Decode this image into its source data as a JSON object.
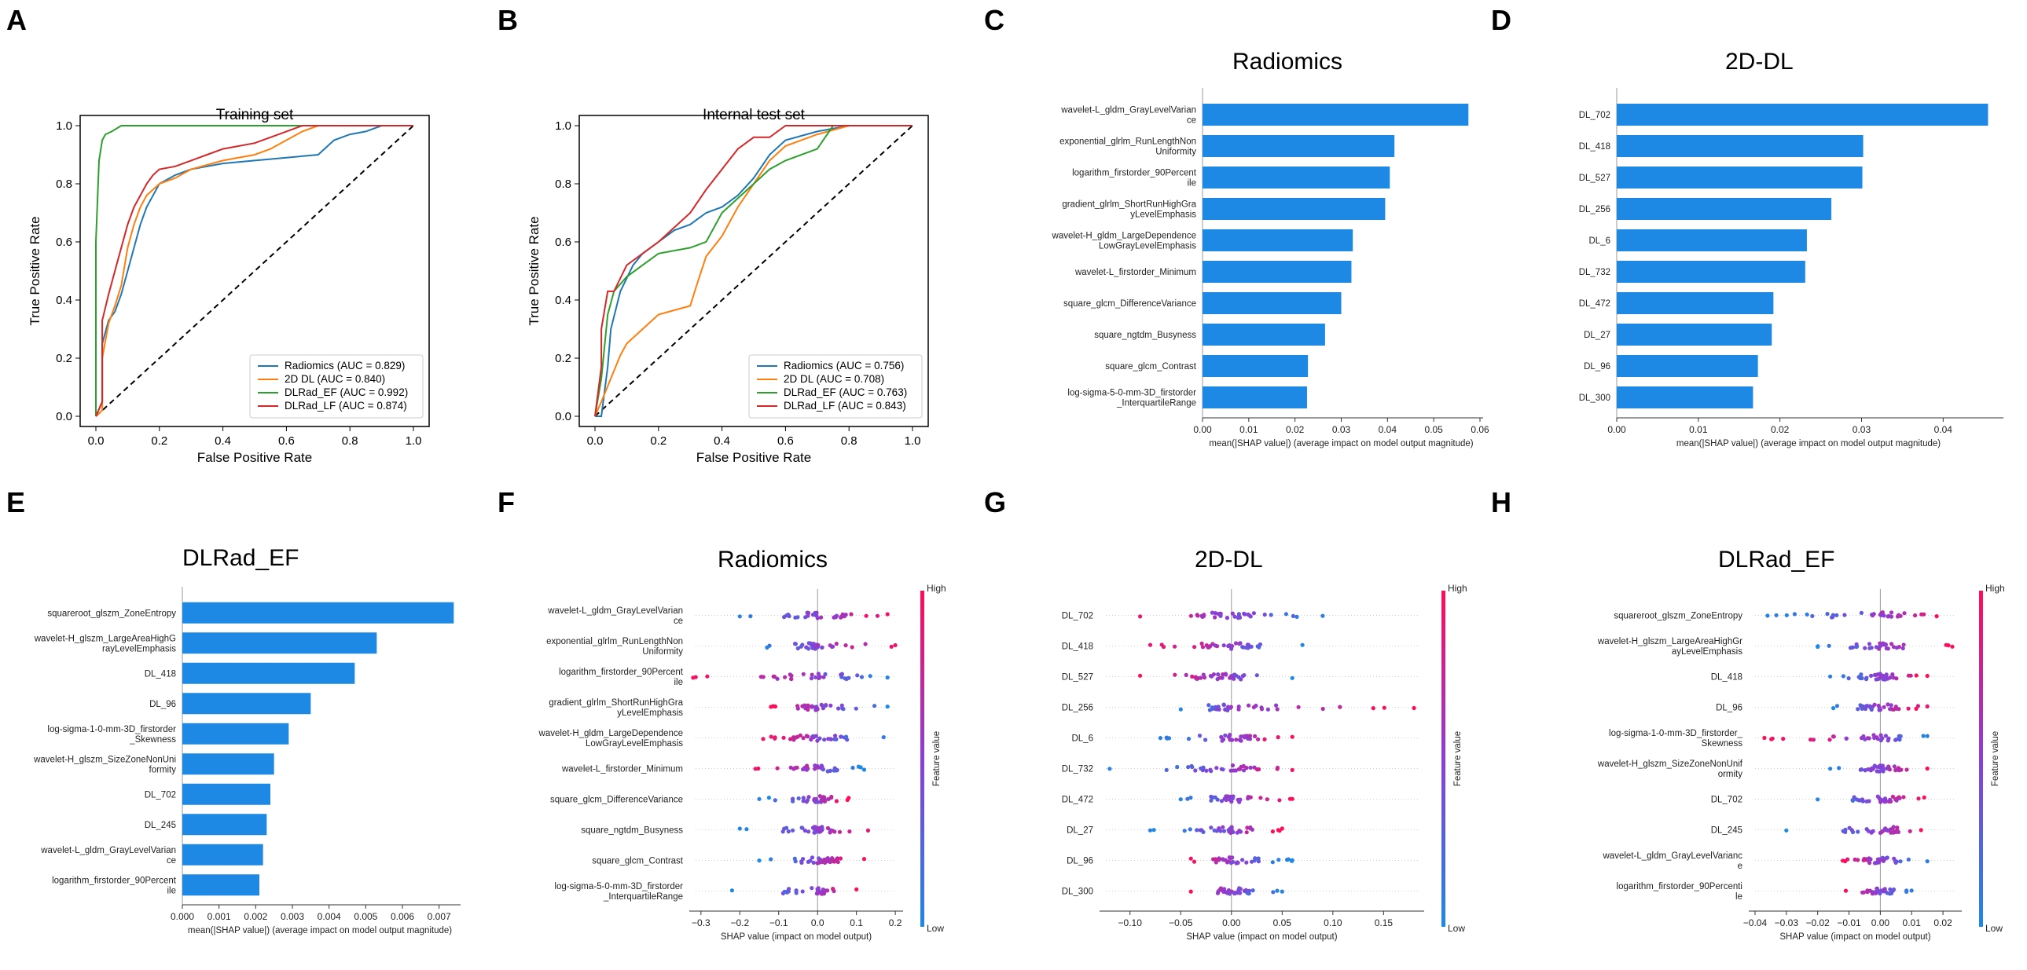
{
  "panels": [
    "A",
    "B",
    "C",
    "D",
    "E",
    "F",
    "G",
    "H"
  ],
  "colors": {
    "bar": "#1e88e5",
    "low": "#1e88e5",
    "high": "#ff0d57",
    "radiomics": "#1f77b4",
    "dl2d": "#ff7f0e",
    "ef": "#2ca02c",
    "lf": "#d62728"
  },
  "colorbar": {
    "high": "High",
    "low": "Low",
    "label": "Feature value"
  },
  "chart_data": [
    {
      "panel": "A",
      "type": "line",
      "title": "Training set",
      "xlabel": "False Positive Rate",
      "ylabel": "True Positive Rate",
      "xlim": [
        0,
        1
      ],
      "ylim": [
        0,
        1
      ],
      "ticks": [
        "0.0",
        "0.2",
        "0.4",
        "0.6",
        "0.8",
        "1.0"
      ],
      "series": [
        {
          "name": "Radiomics (AUC = 0.829)",
          "x": [
            0,
            0.02,
            0.02,
            0.04,
            0.06,
            0.08,
            0.1,
            0.12,
            0.14,
            0.16,
            0.18,
            0.2,
            0.25,
            0.3,
            0.4,
            0.5,
            0.6,
            0.7,
            0.75,
            0.8,
            0.85,
            0.9,
            1.0
          ],
          "y": [
            0,
            0.05,
            0.25,
            0.33,
            0.36,
            0.42,
            0.5,
            0.58,
            0.66,
            0.72,
            0.76,
            0.8,
            0.83,
            0.85,
            0.87,
            0.88,
            0.89,
            0.9,
            0.95,
            0.97,
            0.98,
            1.0,
            1.0
          ]
        },
        {
          "name": "2D DL (AUC = 0.840)",
          "x": [
            0,
            0.02,
            0.02,
            0.04,
            0.06,
            0.08,
            0.1,
            0.12,
            0.14,
            0.16,
            0.18,
            0.2,
            0.25,
            0.3,
            0.4,
            0.5,
            0.55,
            0.6,
            0.65,
            0.7,
            0.75,
            1.0
          ],
          "y": [
            0,
            0.02,
            0.2,
            0.32,
            0.38,
            0.45,
            0.58,
            0.66,
            0.72,
            0.76,
            0.78,
            0.8,
            0.82,
            0.85,
            0.88,
            0.9,
            0.92,
            0.95,
            0.98,
            1.0,
            1.0,
            1.0
          ]
        },
        {
          "name": "DLRad_EF (AUC = 0.992)",
          "x": [
            0,
            0,
            0.01,
            0.02,
            0.03,
            0.05,
            0.08,
            0.5,
            1.0
          ],
          "y": [
            0,
            0.6,
            0.88,
            0.95,
            0.97,
            0.98,
            1.0,
            1.0,
            1.0
          ]
        },
        {
          "name": "DLRad_LF (AUC = 0.874)",
          "x": [
            0,
            0.02,
            0.02,
            0.04,
            0.06,
            0.08,
            0.1,
            0.12,
            0.14,
            0.16,
            0.18,
            0.2,
            0.25,
            0.3,
            0.35,
            0.4,
            0.5,
            0.55,
            0.6,
            0.65,
            0.7,
            1.0
          ],
          "y": [
            0,
            0.05,
            0.33,
            0.42,
            0.5,
            0.58,
            0.66,
            0.72,
            0.76,
            0.8,
            0.83,
            0.85,
            0.86,
            0.88,
            0.9,
            0.92,
            0.94,
            0.96,
            0.98,
            1.0,
            1.0,
            1.0
          ]
        }
      ]
    },
    {
      "panel": "B",
      "type": "line",
      "title": "Internal test set",
      "xlabel": "False Positive Rate",
      "ylabel": "True Positive Rate",
      "xlim": [
        0,
        1
      ],
      "ylim": [
        0,
        1
      ],
      "ticks": [
        "0.0",
        "0.2",
        "0.4",
        "0.6",
        "0.8",
        "1.0"
      ],
      "series": [
        {
          "name": "Radiomics (AUC = 0.756)",
          "x": [
            0,
            0.02,
            0.04,
            0.05,
            0.08,
            0.12,
            0.15,
            0.2,
            0.25,
            0.3,
            0.35,
            0.4,
            0.45,
            0.5,
            0.55,
            0.6,
            0.7,
            0.8,
            1.0
          ],
          "y": [
            0,
            0,
            0.17,
            0.3,
            0.43,
            0.52,
            0.56,
            0.6,
            0.64,
            0.66,
            0.7,
            0.72,
            0.76,
            0.82,
            0.9,
            0.95,
            0.98,
            1.0,
            1.0
          ]
        },
        {
          "name": "2D DL (AUC = 0.708)",
          "x": [
            0,
            0.02,
            0.05,
            0.08,
            0.1,
            0.15,
            0.2,
            0.3,
            0.32,
            0.35,
            0.4,
            0.45,
            0.5,
            0.55,
            0.6,
            0.7,
            0.8,
            0.85,
            1.0
          ],
          "y": [
            0,
            0.05,
            0.13,
            0.21,
            0.25,
            0.3,
            0.35,
            0.38,
            0.45,
            0.55,
            0.62,
            0.72,
            0.8,
            0.88,
            0.93,
            0.97,
            1.0,
            1.0,
            1.0
          ]
        },
        {
          "name": "DLRad_EF (AUC = 0.763)",
          "x": [
            0,
            0.02,
            0.04,
            0.06,
            0.1,
            0.15,
            0.2,
            0.3,
            0.35,
            0.4,
            0.45,
            0.5,
            0.55,
            0.6,
            0.7,
            0.75,
            1.0
          ],
          "y": [
            0,
            0.13,
            0.35,
            0.43,
            0.48,
            0.52,
            0.56,
            0.58,
            0.6,
            0.7,
            0.75,
            0.8,
            0.85,
            0.88,
            0.92,
            1.0,
            1.0
          ]
        },
        {
          "name": "DLRad_LF (AUC = 0.843)",
          "x": [
            0,
            0.02,
            0.02,
            0.04,
            0.06,
            0.1,
            0.15,
            0.2,
            0.25,
            0.3,
            0.35,
            0.4,
            0.45,
            0.5,
            0.55,
            0.6,
            1.0
          ],
          "y": [
            0,
            0.17,
            0.3,
            0.43,
            0.43,
            0.52,
            0.56,
            0.6,
            0.65,
            0.7,
            0.78,
            0.85,
            0.92,
            0.96,
            0.96,
            1.0,
            1.0
          ]
        }
      ]
    },
    {
      "panel": "C",
      "type": "bar",
      "title": "Radiomics",
      "xlabel": "mean(|SHAP value|) (average impact on model output magnitude)",
      "xlim": [
        0,
        0.06
      ],
      "ticks": [
        "0.00",
        "0.01",
        "0.02",
        "0.03",
        "0.04",
        "0.05",
        "0.06"
      ],
      "features": [
        "wavelet-L_gldm_GrayLevelVarian\nce",
        "exponential_glrlm_RunLengthNon\nUniformity",
        "logarithm_firstorder_90Percent\nile",
        "gradient_glrlm_ShortRunHighGra\nyLevelEmphasis",
        "wavelet-H_gldm_LargeDependence\nLowGrayLevelEmphasis",
        "wavelet-L_firstorder_Minimum",
        "square_glcm_DifferenceVariance",
        "square_ngtdm_Busyness",
        "square_glcm_Contrast",
        "log-sigma-5-0-mm-3D_firstorder\n_InterquartileRange"
      ],
      "values": [
        0.0575,
        0.0415,
        0.0405,
        0.0395,
        0.0325,
        0.0322,
        0.03,
        0.0265,
        0.0228,
        0.0226
      ]
    },
    {
      "panel": "D",
      "type": "bar",
      "title": "2D-DL",
      "xlabel": "mean(|SHAP value|) (average impact on model output magnitude)",
      "xlim": [
        0,
        0.047
      ],
      "ticks": [
        "0.00",
        "0.01",
        "0.02",
        "0.03",
        "0.04"
      ],
      "features": [
        "DL_702",
        "DL_418",
        "DL_527",
        "DL_256",
        "DL_6",
        "DL_732",
        "DL_472",
        "DL_27",
        "DL_96",
        "DL_300"
      ],
      "values": [
        0.0455,
        0.0302,
        0.0301,
        0.0263,
        0.0233,
        0.0231,
        0.0192,
        0.019,
        0.0173,
        0.0167
      ]
    },
    {
      "panel": "E",
      "type": "bar",
      "title": "DLRad_EF",
      "xlabel": "mean(|SHAP value|) (average impact on model output magnitude)",
      "xlim": [
        0,
        0.0075
      ],
      "ticks": [
        "0.000",
        "0.001",
        "0.002",
        "0.003",
        "0.004",
        "0.005",
        "0.006",
        "0.007"
      ],
      "features": [
        "squareroot_glszm_ZoneEntropy",
        "wavelet-H_glszm_LargeAreaHighG\nrayLevelEmphasis",
        "DL_418",
        "DL_96",
        "log-sigma-1-0-mm-3D_firstorder\n_Skewness",
        "wavelet-H_glszm_SizeZoneNonUni\nformity",
        "DL_702",
        "DL_245",
        "wavelet-L_gldm_GrayLevelVarian\nce",
        "logarithm_firstorder_90Percent\nile"
      ],
      "values": [
        0.0074,
        0.0053,
        0.0047,
        0.0035,
        0.0029,
        0.0025,
        0.0024,
        0.0023,
        0.0022,
        0.0021
      ]
    },
    {
      "panel": "F",
      "type": "scatter",
      "title": "Radiomics",
      "xlabel": "SHAP value (impact on model output)",
      "xlim": [
        -0.33,
        0.22
      ],
      "ticks": [
        -0.3,
        -0.2,
        -0.1,
        0.0,
        0.1,
        0.2
      ],
      "tick_labels": [
        "−0.3",
        "−0.2",
        "−0.1",
        "0.0",
        "0.1",
        "0.2"
      ],
      "features": [
        "wavelet-L_gldm_GrayLevelVarian\nce",
        "exponential_glrlm_RunLengthNon\nUniformity",
        "logarithm_firstorder_90Percent\nile",
        "gradient_glrlm_ShortRunHighGra\nyLevelEmphasis",
        "wavelet-H_gldm_LargeDependence\nLowGrayLevelEmphasis",
        "wavelet-L_firstorder_Minimum",
        "square_glcm_DifferenceVariance",
        "square_ngtdm_Busyness",
        "square_glcm_Contrast",
        "log-sigma-5-0-mm-3D_firstorder\n_InterquartileRange"
      ],
      "spread": [
        [
          -0.2,
          0.18
        ],
        [
          -0.13,
          0.2
        ],
        [
          -0.32,
          0.18
        ],
        [
          -0.12,
          0.18
        ],
        [
          -0.14,
          0.17
        ],
        [
          -0.16,
          0.12
        ],
        [
          -0.15,
          0.08
        ],
        [
          -0.2,
          0.13
        ],
        [
          -0.15,
          0.12
        ],
        [
          -0.22,
          0.1
        ]
      ],
      "high_side": [
        1,
        1,
        -1,
        -1,
        -1,
        -1,
        1,
        1,
        1,
        1
      ]
    },
    {
      "panel": "G",
      "type": "scatter",
      "title": "2D-DL",
      "xlabel": "SHAP value (impact on model output)",
      "xlim": [
        -0.13,
        0.19
      ],
      "ticks": [
        -0.1,
        -0.05,
        0.0,
        0.05,
        0.1,
        0.15
      ],
      "tick_labels": [
        "−0.10",
        "−0.05",
        "0.00",
        "0.05",
        "0.10",
        "0.15"
      ],
      "features": [
        "DL_702",
        "DL_418",
        "DL_527",
        "DL_256",
        "DL_6",
        "DL_732",
        "DL_472",
        "DL_27",
        "DL_96",
        "DL_300"
      ],
      "spread": [
        [
          -0.09,
          0.09
        ],
        [
          -0.08,
          0.07
        ],
        [
          -0.09,
          0.06
        ],
        [
          -0.05,
          0.18
        ],
        [
          -0.07,
          0.06
        ],
        [
          -0.12,
          0.06
        ],
        [
          -0.05,
          0.06
        ],
        [
          -0.08,
          0.05
        ],
        [
          -0.04,
          0.06
        ],
        [
          -0.04,
          0.05
        ]
      ],
      "high_side": [
        -1,
        -1,
        -1,
        1,
        1,
        1,
        1,
        1,
        -1,
        -1
      ]
    },
    {
      "panel": "H",
      "type": "scatter",
      "title": "DLRad_EF",
      "xlabel": "SHAP value (impact on model output)",
      "xlim": [
        -0.042,
        0.026
      ],
      "ticks": [
        -0.04,
        -0.03,
        -0.02,
        -0.01,
        0.0,
        0.01,
        0.02
      ],
      "tick_labels": [
        "−0.04",
        "−0.03",
        "−0.02",
        "−0.01",
        "0.00",
        "0.01",
        "0.02"
      ],
      "features": [
        "squareroot_glszm_ZoneEntropy",
        "wavelet-H_glszm_LargeAreaHighGr\nayLevelEmphasis",
        "DL_418",
        "DL_96",
        "log-sigma-1-0-mm-3D_firstorder_\nSkewness",
        "wavelet-H_glszm_SizeZoneNonUnif\normity",
        "DL_702",
        "DL_245",
        "wavelet-L_gldm_GrayLevelVarianc\ne",
        "logarithm_firstorder_90Percenti\nle"
      ],
      "spread": [
        [
          -0.036,
          0.018
        ],
        [
          -0.02,
          0.023
        ],
        [
          -0.016,
          0.015
        ],
        [
          -0.015,
          0.015
        ],
        [
          -0.037,
          0.015
        ],
        [
          -0.016,
          0.015
        ],
        [
          -0.02,
          0.014
        ],
        [
          -0.03,
          0.013
        ],
        [
          -0.012,
          0.015
        ],
        [
          -0.011,
          0.01
        ]
      ],
      "high_side": [
        1,
        1,
        1,
        1,
        -1,
        1,
        1,
        1,
        -1,
        -1
      ]
    }
  ]
}
